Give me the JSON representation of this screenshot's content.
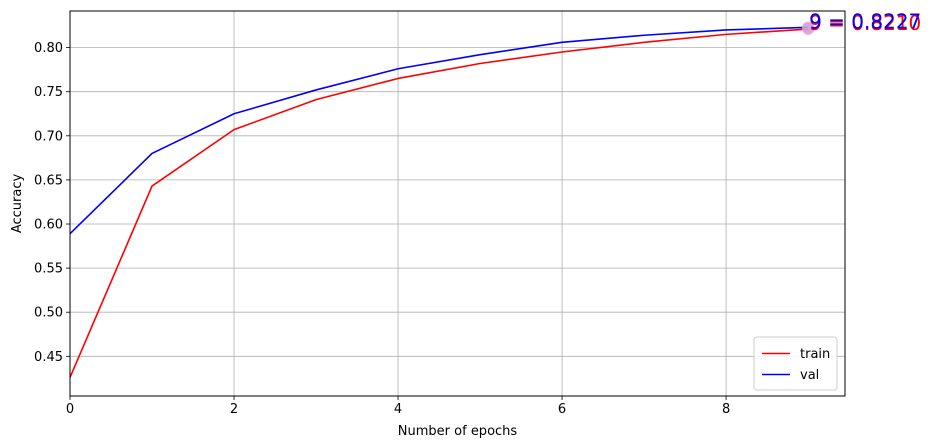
{
  "chart_data": {
    "type": "line",
    "xlabel": "Number of epochs",
    "ylabel": "Accuracy",
    "xlim": [
      0,
      9.45
    ],
    "ylim": [
      0.405,
      0.8415
    ],
    "xticks": [
      0,
      2,
      4,
      6,
      8
    ],
    "xtick_labels": [
      "0",
      "2",
      "4",
      "6",
      "8"
    ],
    "yticks": [
      0.45,
      0.5,
      0.55,
      0.6,
      0.65,
      0.7,
      0.75,
      0.8
    ],
    "ytick_labels": [
      "0.45",
      "0.50",
      "0.55",
      "0.60",
      "0.65",
      "0.70",
      "0.75",
      "0.80"
    ],
    "grid": true,
    "legend_position": "bottom-right",
    "x": [
      0,
      1,
      2,
      3,
      4,
      5,
      6,
      7,
      8,
      9
    ],
    "series": [
      {
        "name": "train",
        "color": "#ff0000",
        "values": [
          0.426,
          0.643,
          0.707,
          0.741,
          0.765,
          0.782,
          0.795,
          0.806,
          0.815,
          0.821
        ]
      },
      {
        "name": "val",
        "color": "#0000ff",
        "values": [
          0.589,
          0.68,
          0.725,
          0.752,
          0.776,
          0.792,
          0.806,
          0.814,
          0.82,
          0.823
        ]
      }
    ],
    "annotations": [
      {
        "text": "9 = 0.8210",
        "x": 9,
        "y": 0.821,
        "color": "#ff0000",
        "marker_color": "#f5a0c0"
      },
      {
        "text": "9 = 0.8227",
        "x": 9,
        "y": 0.8227,
        "color": "#0000ff",
        "marker_color": "#c9a0dd"
      }
    ]
  }
}
